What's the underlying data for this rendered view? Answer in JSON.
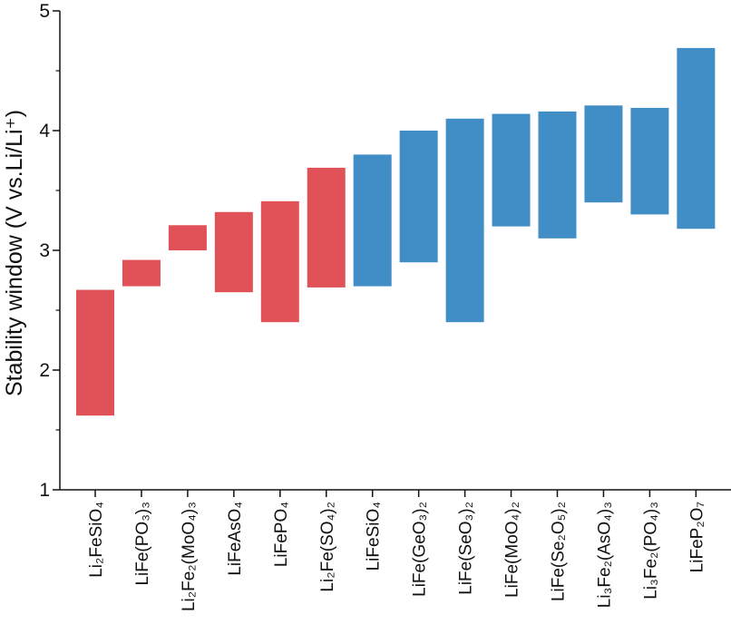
{
  "chart_data": {
    "type": "floating-bar",
    "ylabel": "Stability window (V vs.Li/Li⁺)",
    "ylim": [
      1,
      5
    ],
    "yticks": [
      "1",
      "2",
      "3",
      "4",
      "5"
    ],
    "grid": false,
    "legend": "none",
    "colors": {
      "red": "#e05257",
      "blue": "#418ec6",
      "axis": "#111111"
    },
    "bars": [
      {
        "label": "Li₂FeSiO₄",
        "low": 1.62,
        "high": 2.67,
        "group": "red"
      },
      {
        "label": "LiFe(PO₃)₃",
        "low": 2.7,
        "high": 2.92,
        "group": "red"
      },
      {
        "label": "Li₂Fe₂(MoO₄)₃",
        "low": 3.0,
        "high": 3.21,
        "group": "red"
      },
      {
        "label": "LiFeAsO₄",
        "low": 2.65,
        "high": 3.32,
        "group": "red"
      },
      {
        "label": "LiFePO₄",
        "low": 2.4,
        "high": 3.41,
        "group": "red"
      },
      {
        "label": "Li₂Fe(SO₄)₂",
        "low": 2.69,
        "high": 3.69,
        "group": "red"
      },
      {
        "label": "LiFeSiO₄",
        "low": 2.7,
        "high": 3.8,
        "group": "blue"
      },
      {
        "label": "LiFe(GeO₃)₂",
        "low": 2.9,
        "high": 4.0,
        "group": "blue"
      },
      {
        "label": "LiFe(SeO₃)₂",
        "low": 2.4,
        "high": 4.1,
        "group": "blue"
      },
      {
        "label": "LiFe(MoO₄)₂",
        "low": 3.2,
        "high": 4.14,
        "group": "blue"
      },
      {
        "label": "LiFe(Se₂O₅)₂",
        "low": 3.1,
        "high": 4.16,
        "group": "blue"
      },
      {
        "label": "Li₃Fe₂(AsO₄)₃",
        "low": 3.4,
        "high": 4.21,
        "group": "blue"
      },
      {
        "label": "Li₃Fe₂(PO₄)₃",
        "low": 3.3,
        "high": 4.19,
        "group": "blue"
      },
      {
        "label": "LiFeP₂O₇",
        "low": 3.18,
        "high": 4.69,
        "group": "blue"
      }
    ]
  }
}
